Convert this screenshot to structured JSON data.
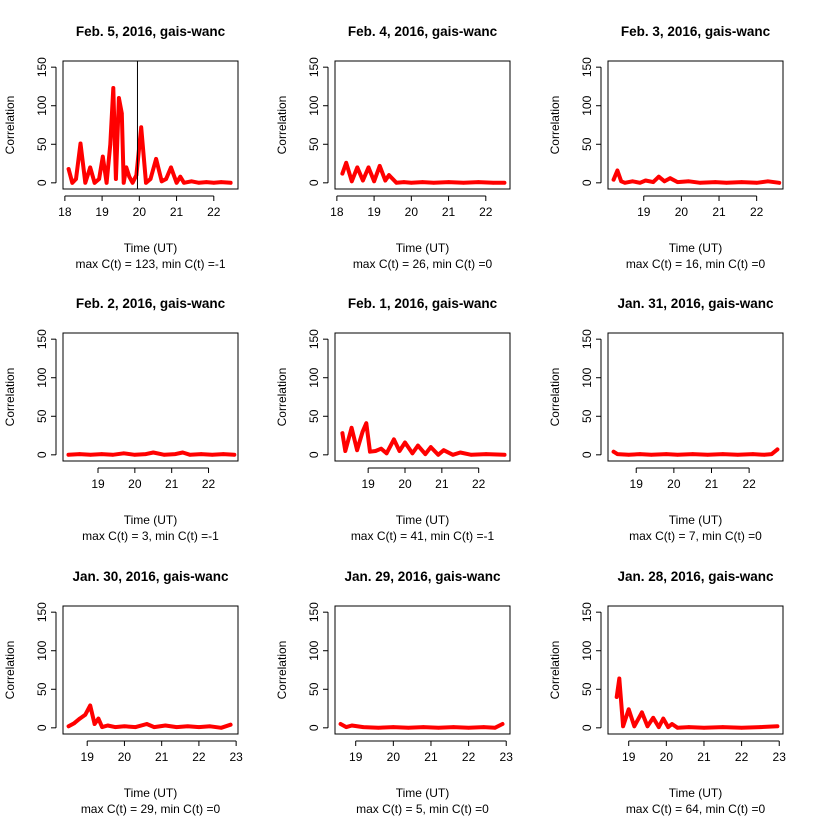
{
  "figure": {
    "background": "#ffffff",
    "series_color": "#ff0000"
  },
  "chart_data": [
    {
      "type": "line",
      "title": "Feb. 5, 2016, gais-wanc",
      "xlabel": "Time (UT)",
      "ylabel": "Correlation",
      "summary": "max C(t) = 123, min C(t) =-1",
      "xlim": [
        17.95,
        22.65
      ],
      "ylim": [
        -8,
        158
      ],
      "xticks": [
        18,
        19,
        20,
        21,
        22
      ],
      "yticks": [
        0,
        50,
        100,
        150
      ],
      "vline": 19.95,
      "series": [
        {
          "x": [
            18.1,
            18.2,
            18.3,
            18.42,
            18.55,
            18.68,
            18.8,
            18.92,
            19.02,
            19.12,
            19.22,
            19.3,
            19.37,
            19.45,
            19.53,
            19.58,
            19.65,
            19.73,
            19.82,
            19.92,
            20.05,
            20.18,
            20.3,
            20.45,
            20.6,
            20.72,
            20.85,
            21.0,
            21.1,
            21.2,
            21.4,
            21.6,
            21.8,
            22.0,
            22.2,
            22.45
          ],
          "y": [
            18,
            0,
            5,
            51,
            0,
            20,
            0,
            5,
            34,
            0,
            50,
            123,
            5,
            110,
            90,
            0,
            20,
            8,
            0,
            10,
            72,
            0,
            5,
            31,
            2,
            5,
            20,
            0,
            8,
            0,
            2,
            0,
            1,
            0,
            1,
            0
          ]
        }
      ]
    },
    {
      "type": "line",
      "title": "Feb. 4, 2016, gais-wanc",
      "xlabel": "Time (UT)",
      "ylabel": "Correlation",
      "summary": "max C(t) = 26, min C(t) =0",
      "xlim": [
        17.95,
        22.65
      ],
      "ylim": [
        -8,
        158
      ],
      "xticks": [
        18,
        19,
        20,
        21,
        22
      ],
      "yticks": [
        0,
        50,
        100,
        150
      ],
      "series": [
        {
          "x": [
            18.15,
            18.25,
            18.4,
            18.55,
            18.7,
            18.85,
            19.0,
            19.15,
            19.3,
            19.4,
            19.6,
            19.8,
            20.0,
            20.3,
            20.6,
            21.0,
            21.4,
            21.8,
            22.2,
            22.5
          ],
          "y": [
            12,
            26,
            2,
            20,
            3,
            20,
            2,
            22,
            3,
            10,
            0,
            1,
            0,
            1,
            0,
            1,
            0,
            1,
            0,
            0
          ]
        }
      ]
    },
    {
      "type": "line",
      "title": "Feb. 3, 2016, gais-wanc",
      "xlabel": "Time (UT)",
      "ylabel": "Correlation",
      "summary": "max C(t) = 16, min C(t) =0",
      "xlim": [
        18.05,
        22.7
      ],
      "ylim": [
        -8,
        158
      ],
      "xticks": [
        19,
        20,
        21,
        22
      ],
      "yticks": [
        0,
        50,
        100,
        150
      ],
      "series": [
        {
          "x": [
            18.2,
            18.3,
            18.4,
            18.5,
            18.7,
            18.9,
            19.05,
            19.25,
            19.4,
            19.55,
            19.7,
            19.9,
            20.2,
            20.5,
            20.9,
            21.2,
            21.6,
            22.0,
            22.3,
            22.6
          ],
          "y": [
            4,
            16,
            2,
            0,
            2,
            0,
            3,
            1,
            8,
            2,
            6,
            1,
            2,
            0,
            1,
            0,
            1,
            0,
            2,
            0
          ]
        }
      ]
    },
    {
      "type": "line",
      "title": "Feb. 2, 2016, gais-wanc",
      "xlabel": "Time (UT)",
      "ylabel": "Correlation",
      "summary": "max C(t) = 3, min C(t) =-1",
      "xlim": [
        18.05,
        22.8
      ],
      "ylim": [
        -8,
        158
      ],
      "xticks": [
        19,
        20,
        21,
        22
      ],
      "yticks": [
        0,
        50,
        100,
        150
      ],
      "series": [
        {
          "x": [
            18.2,
            18.5,
            18.8,
            19.1,
            19.4,
            19.7,
            20.0,
            20.3,
            20.5,
            20.8,
            21.1,
            21.3,
            21.5,
            21.8,
            22.1,
            22.4,
            22.7
          ],
          "y": [
            0,
            1,
            0,
            1,
            0,
            2,
            0,
            1,
            3,
            0,
            1,
            3,
            0,
            1,
            0,
            1,
            0
          ]
        }
      ]
    },
    {
      "type": "line",
      "title": "Feb. 1, 2016, gais-wanc",
      "xlabel": "Time (UT)",
      "ylabel": "Correlation",
      "summary": "max C(t) = 41, min C(t) =-1",
      "xlim": [
        18.1,
        22.85
      ],
      "ylim": [
        -8,
        158
      ],
      "xticks": [
        19,
        20,
        21,
        22
      ],
      "yticks": [
        0,
        50,
        100,
        150
      ],
      "series": [
        {
          "x": [
            18.3,
            18.38,
            18.55,
            18.7,
            18.85,
            18.95,
            19.05,
            19.2,
            19.35,
            19.5,
            19.7,
            19.85,
            20.0,
            20.2,
            20.35,
            20.55,
            20.7,
            20.9,
            21.05,
            21.3,
            21.5,
            21.8,
            22.2,
            22.7
          ],
          "y": [
            28,
            5,
            35,
            6,
            30,
            41,
            4,
            5,
            8,
            2,
            20,
            5,
            16,
            2,
            12,
            1,
            10,
            0,
            6,
            0,
            3,
            0,
            1,
            0
          ]
        }
      ]
    },
    {
      "type": "line",
      "title": "Jan. 31, 2016, gais-wanc",
      "xlabel": "Time (UT)",
      "ylabel": "Correlation",
      "summary": "max C(t) = 7, min C(t) =0",
      "xlim": [
        18.25,
        22.9
      ],
      "ylim": [
        -8,
        158
      ],
      "xticks": [
        19,
        20,
        21,
        22
      ],
      "yticks": [
        0,
        50,
        100,
        150
      ],
      "series": [
        {
          "x": [
            18.4,
            18.5,
            18.8,
            19.1,
            19.4,
            19.8,
            20.1,
            20.5,
            20.9,
            21.3,
            21.7,
            22.1,
            22.4,
            22.6,
            22.75
          ],
          "y": [
            4,
            1,
            0,
            1,
            0,
            1,
            0,
            1,
            0,
            1,
            0,
            1,
            0,
            1,
            7
          ]
        }
      ]
    },
    {
      "type": "line",
      "title": "Jan. 30, 2016, gais-wanc",
      "xlabel": "Time (UT)",
      "ylabel": "Correlation",
      "summary": "max C(t) = 29, min C(t) =0",
      "xlim": [
        18.35,
        23.05
      ],
      "ylim": [
        -8,
        158
      ],
      "xticks": [
        19,
        20,
        21,
        22,
        23
      ],
      "yticks": [
        0,
        50,
        100,
        150
      ],
      "series": [
        {
          "x": [
            18.5,
            18.65,
            18.8,
            18.95,
            19.08,
            19.2,
            19.3,
            19.4,
            19.55,
            19.75,
            20.0,
            20.3,
            20.6,
            20.8,
            21.1,
            21.4,
            21.7,
            22.0,
            22.3,
            22.6,
            22.85
          ],
          "y": [
            2,
            6,
            12,
            17,
            29,
            5,
            12,
            1,
            3,
            1,
            2,
            1,
            5,
            1,
            3,
            1,
            2,
            1,
            2,
            0,
            4
          ]
        }
      ]
    },
    {
      "type": "line",
      "title": "Jan. 29, 2016, gais-wanc",
      "xlabel": "Time (UT)",
      "ylabel": "Correlation",
      "summary": "max C(t) = 5, min C(t) =0",
      "xlim": [
        18.45,
        23.1
      ],
      "ylim": [
        -8,
        158
      ],
      "xticks": [
        19,
        20,
        21,
        22,
        23
      ],
      "yticks": [
        0,
        50,
        100,
        150
      ],
      "series": [
        {
          "x": [
            18.6,
            18.75,
            18.9,
            19.2,
            19.6,
            20.0,
            20.4,
            20.8,
            21.2,
            21.6,
            22.0,
            22.4,
            22.7,
            22.9
          ],
          "y": [
            5,
            1,
            3,
            1,
            0,
            1,
            0,
            1,
            0,
            1,
            0,
            1,
            0,
            5
          ]
        }
      ]
    },
    {
      "type": "line",
      "title": "Jan. 28, 2016, gais-wanc",
      "xlabel": "Time (UT)",
      "ylabel": "Correlation",
      "summary": "max C(t) = 64, min C(t) =0",
      "xlim": [
        18.45,
        23.1
      ],
      "ylim": [
        -8,
        158
      ],
      "xticks": [
        19,
        20,
        21,
        22,
        23
      ],
      "yticks": [
        0,
        50,
        100,
        150
      ],
      "series": [
        {
          "x": [
            18.68,
            18.75,
            18.85,
            19.0,
            19.15,
            19.35,
            19.5,
            19.65,
            19.8,
            19.92,
            20.05,
            20.15,
            20.3,
            20.6,
            21.0,
            21.5,
            22.0,
            22.5,
            22.95
          ],
          "y": [
            40,
            64,
            2,
            24,
            2,
            20,
            2,
            13,
            1,
            12,
            1,
            5,
            0,
            1,
            0,
            1,
            0,
            1,
            2
          ]
        }
      ]
    }
  ]
}
